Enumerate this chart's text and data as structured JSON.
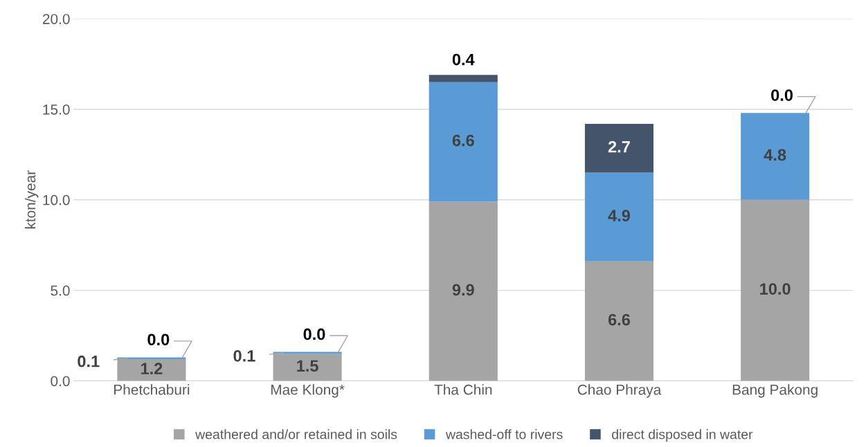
{
  "chart_data": {
    "type": "bar",
    "stacked": true,
    "ylabel": "kton/year",
    "categories": [
      "Phetchaburi",
      "Mae Klong*",
      "Tha Chin",
      "Chao Phraya",
      "Bang Pakong"
    ],
    "series": [
      {
        "name": "weathered and/or retained in soils",
        "color": "#a5a5a5",
        "values": [
          1.2,
          1.5,
          9.9,
          6.6,
          10.0
        ],
        "value_labels": [
          "1.2",
          "1.5",
          "9.9",
          "6.6",
          "10.0"
        ]
      },
      {
        "name": "washed-off to rivers",
        "color": "#5b9bd5",
        "values": [
          0.1,
          0.1,
          6.6,
          4.9,
          4.8
        ],
        "value_labels": [
          "0.1",
          "0.1",
          "6.6",
          "4.9",
          "4.8"
        ]
      },
      {
        "name": "direct disposed in water",
        "color": "#44546a",
        "values": [
          0.0,
          0.0,
          0.4,
          2.7,
          0.0
        ],
        "value_labels": [
          "0.0",
          "0.0",
          "0.4",
          "2.7",
          "0.0"
        ]
      }
    ],
    "ylim": [
      0,
      20
    ],
    "yticks": [
      {
        "value": 0,
        "label": "0.0"
      },
      {
        "value": 5,
        "label": "5.0"
      },
      {
        "value": 10,
        "label": "10.0"
      },
      {
        "value": 15,
        "label": "15.0"
      },
      {
        "value": 20,
        "label": "20.0"
      }
    ],
    "grid": "y",
    "legend": "bottom"
  }
}
